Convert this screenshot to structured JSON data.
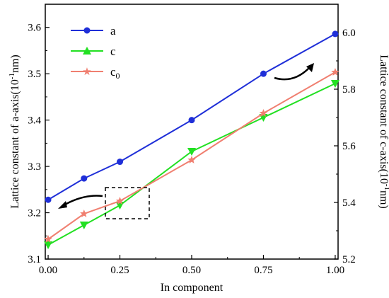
{
  "chart_data": {
    "type": "line",
    "x": [
      0.0,
      0.125,
      0.25,
      0.5,
      0.75,
      1.0
    ],
    "xlabel": "In component",
    "ylabel_left": "Lattice constant of a-axis(10",
    "ylabel_left_sup": "-1",
    "ylabel_left_tail": "nm)",
    "ylabel_right": "Lattice constant of c-axis(10",
    "ylabel_right_sup": "-1",
    "ylabel_right_tail": "nm)",
    "xlim": [
      -0.01,
      1.01
    ],
    "ylim_left": [
      3.1,
      3.65
    ],
    "ylim_right": [
      5.2,
      6.1
    ],
    "xticks": [
      "0.00",
      "0.25",
      "0.50",
      "0.75",
      "1.00"
    ],
    "yticks_left": [
      "3.1",
      "3.2",
      "3.3",
      "3.4",
      "3.5",
      "3.6"
    ],
    "yticks_right": [
      "5.2",
      "5.4",
      "5.6",
      "5.8",
      "6.0"
    ],
    "legend_position": "top-left",
    "grid": false,
    "series": [
      {
        "name": "a",
        "axis": "left",
        "color": "#1f2fd8",
        "marker": "circle",
        "values": [
          3.228,
          3.274,
          3.31,
          3.4,
          3.5,
          3.586
        ]
      },
      {
        "name": "c",
        "axis": "right",
        "color": "#22e022",
        "marker": "triangle-down",
        "values": [
          5.25,
          5.32,
          5.39,
          5.58,
          5.7,
          5.82
        ]
      },
      {
        "name": "c0",
        "label_main": "c",
        "label_sub": "0",
        "axis": "right",
        "color": "#f07f70",
        "marker": "star",
        "values": [
          5.27,
          5.36,
          5.405,
          5.55,
          5.715,
          5.86
        ]
      }
    ]
  }
}
